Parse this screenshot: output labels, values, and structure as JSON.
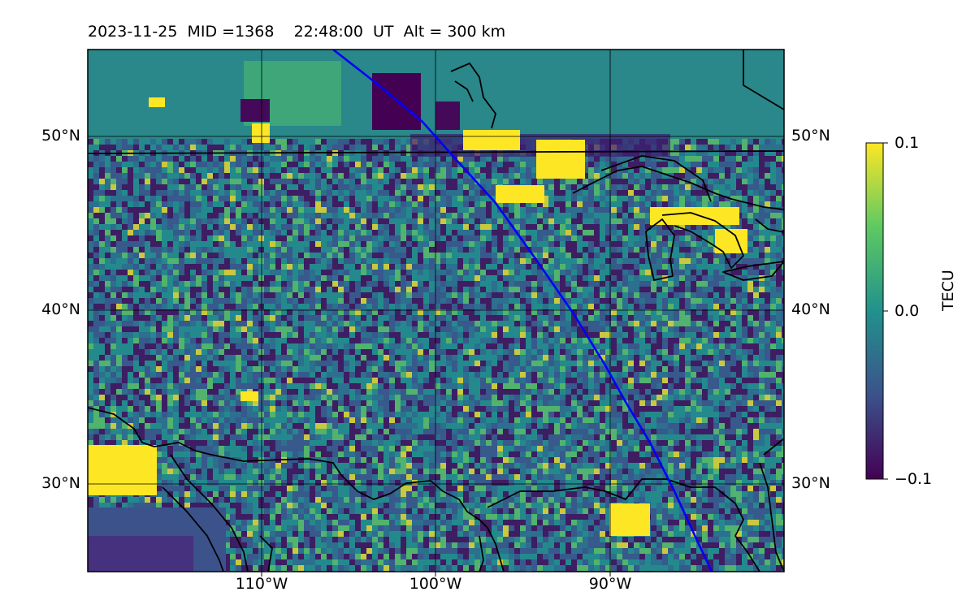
{
  "title": "2023-11-25  MID =1368    22:48:00  UT  Alt = 300 km",
  "map": {
    "lat_labels": [
      "50°N",
      "40°N",
      "30°N"
    ],
    "lon_labels": [
      "110°W",
      "100°W",
      "90°W"
    ],
    "extent": {
      "lon_min": -120,
      "lon_max": -80,
      "lat_min": 25,
      "lat_max": 55
    },
    "grid_lons": [
      -110,
      -100,
      -90
    ],
    "grid_lats": [
      50,
      40,
      30
    ],
    "track_color": "#0000ff",
    "coastline_color": "#000000"
  },
  "colorbar": {
    "label": "TECU",
    "ticks": [
      "0.1",
      "0.0",
      "−0.1"
    ],
    "min": -0.1,
    "max": 0.1,
    "colormap": "viridis",
    "colors": [
      "#440154",
      "#3b528b",
      "#21918c",
      "#5ec962",
      "#fde725"
    ]
  }
}
